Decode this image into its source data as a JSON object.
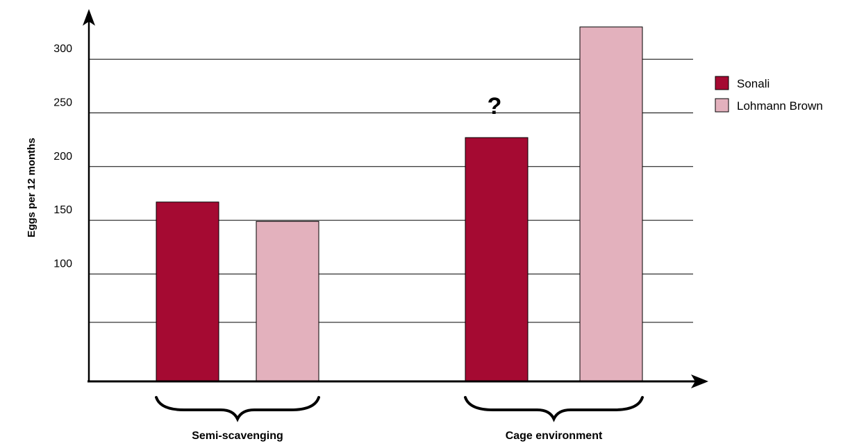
{
  "chart_data": {
    "type": "bar",
    "title": "",
    "xlabel": "",
    "ylabel": "Eggs per 12 months",
    "categories": [
      "Semi-scavenging",
      "Cage environment"
    ],
    "series": [
      {
        "name": "Sonali",
        "color": "#a50a32",
        "values": [
          167,
          227
        ]
      },
      {
        "name": "Lohmann Brown",
        "color": "#e3b1bd",
        "values": [
          149,
          330
        ]
      }
    ],
    "ylim": [
      0,
      330
    ],
    "yticks": [
      300,
      250,
      200,
      150,
      100
    ],
    "gridlines": [
      300,
      250,
      200,
      150,
      100,
      55
    ],
    "grid": true,
    "legend_position": "right",
    "annotations": [
      {
        "text": "?",
        "category": "Cage environment",
        "series": "Sonali"
      }
    ]
  }
}
